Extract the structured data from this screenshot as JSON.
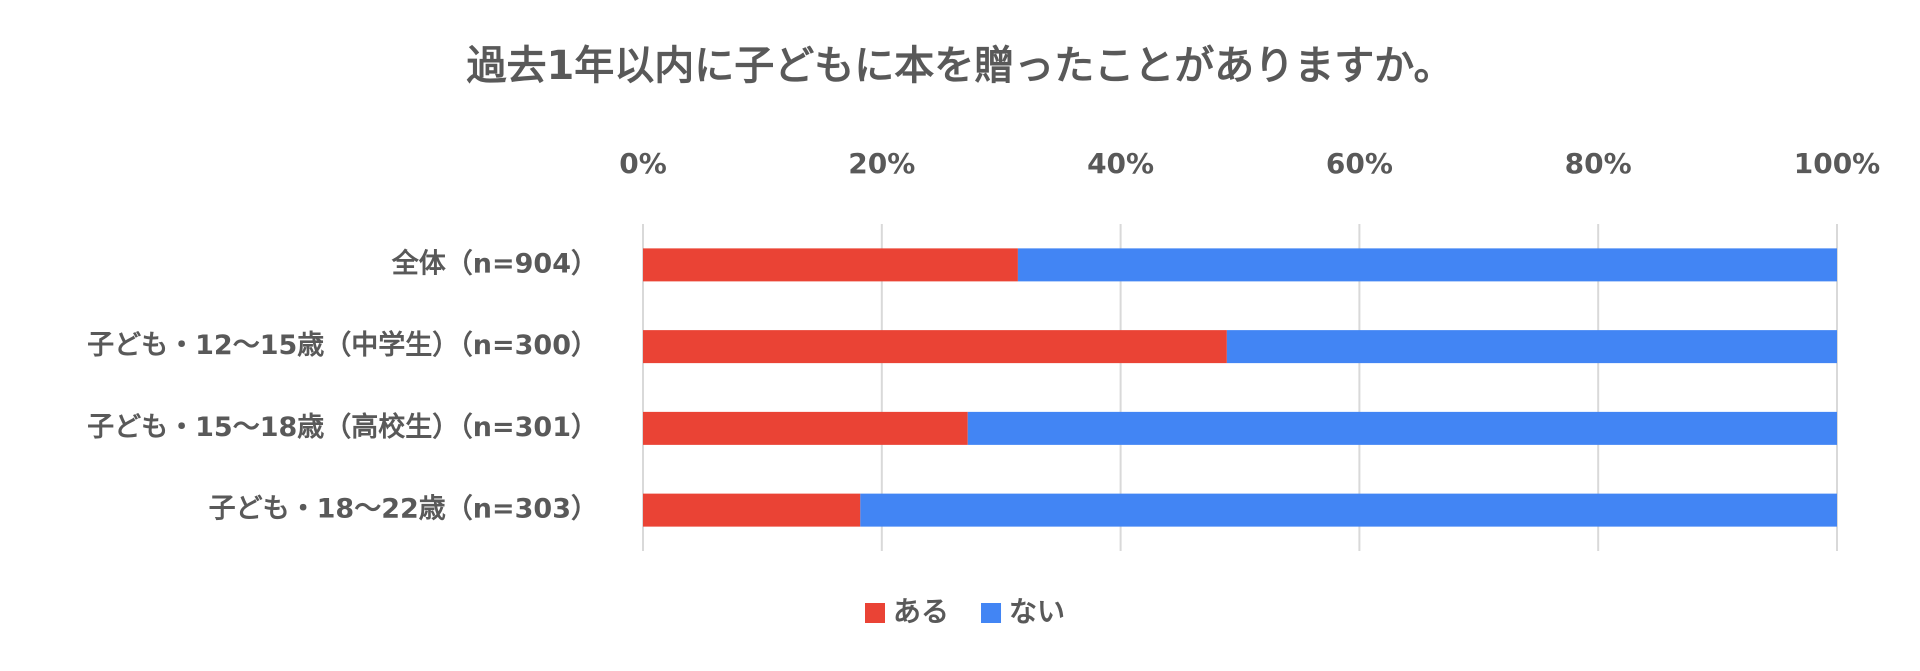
{
  "chart_data": {
    "type": "stacked-bar-horizontal",
    "title": "過去1年以内に子どもに本を贈ったことがありますか。",
    "categories": [
      "全体（n=904）",
      "子ども・12～15歳（中学生）（n=300）",
      "子ども・15～18歳（高校生）（n=301）",
      "子ども・18～22歳（n=303）"
    ],
    "series": [
      {
        "name": "ある",
        "color": "#ea4335",
        "values": [
          31.4,
          48.9,
          27.2,
          18.2
        ]
      },
      {
        "name": "ない",
        "color": "#4285f4",
        "values": [
          68.6,
          51.1,
          72.8,
          81.8
        ]
      }
    ],
    "xlim": [
      0,
      100
    ],
    "xticks": [
      {
        "value": 0,
        "label": "0%"
      },
      {
        "value": 20,
        "label": "20%"
      },
      {
        "value": 40,
        "label": "40%"
      },
      {
        "value": 60,
        "label": "60%"
      },
      {
        "value": 80,
        "label": "80%"
      },
      {
        "value": 100,
        "label": "100%"
      }
    ],
    "grid": true,
    "legend": "bottom"
  }
}
